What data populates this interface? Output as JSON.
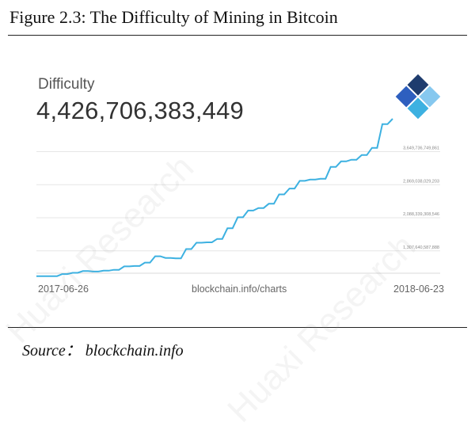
{
  "figure": {
    "title": "Figure 2.3: The Difficulty of Mining in Bitcoin",
    "source": "Source： blockchain.info"
  },
  "metric": {
    "label": "Difficulty",
    "value": "4,426,706,383,449"
  },
  "chart_data": {
    "type": "line",
    "x_start_label": "2017-06-26",
    "x_end_label": "2018-06-23",
    "center_label": "blockchain.info/charts",
    "y_tick_labels": [
      "1,307,640,587,888",
      "2,088,339,308,546",
      "2,869,038,029,203",
      "3,649,736,749,861"
    ],
    "y_ticks": [
      1307640587888,
      2088339308546,
      2869038029203,
      3649736749861
    ],
    "ylim": [
      780000000000,
      4426706383449
    ],
    "grid": true,
    "color": "#3db1e1",
    "values": [
      711697198690,
      711697198690,
      711697198690,
      711697198690,
      711697198690,
      760000000000,
      760000000000,
      790000000000,
      790000000000,
      830000000000,
      830000000000,
      820000000000,
      820000000000,
      840000000000,
      840000000000,
      860000000000,
      860000000000,
      940000000000,
      940000000000,
      950000000000,
      950000000000,
      1030000000000,
      1030000000000,
      1180000000000,
      1180000000000,
      1140000000000,
      1140000000000,
      1130000000000,
      1130000000000,
      1350000000000,
      1350000000000,
      1500000000000,
      1500000000000,
      1510000000000,
      1510000000000,
      1590000000000,
      1590000000000,
      1840000000000,
      1840000000000,
      2100000000000,
      2100000000000,
      2260000000000,
      2260000000000,
      2320000000000,
      2320000000000,
      2420000000000,
      2420000000000,
      2640000000000,
      2640000000000,
      2780000000000,
      2780000000000,
      2960000000000,
      2960000000000,
      2990000000000,
      2990000000000,
      3010000000000,
      3010000000000,
      3290000000000,
      3290000000000,
      3420000000000,
      3420000000000,
      3460000000000,
      3460000000000,
      3570000000000,
      3570000000000,
      3740000000000,
      3740000000000,
      4300000000000,
      4300000000000,
      4426706383449
    ]
  },
  "logo": {
    "name": "blockchain-logo-icon",
    "colors": [
      "#1e3c6e",
      "#2e5fbf",
      "#3db1e1",
      "#86c8ef"
    ]
  },
  "watermark": {
    "text": "Huaxi Research"
  }
}
